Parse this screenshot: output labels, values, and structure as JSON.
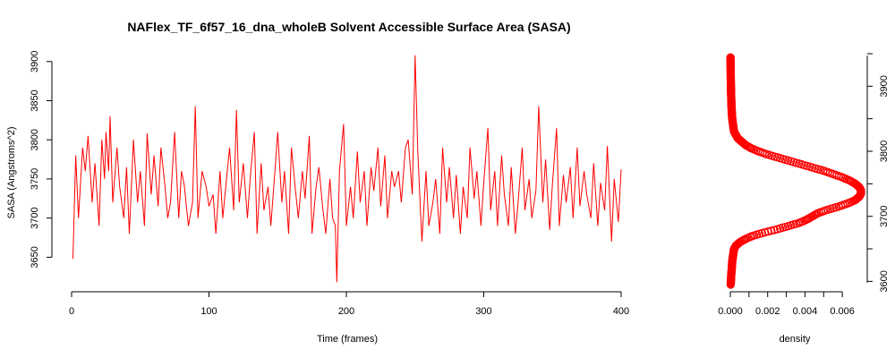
{
  "chart_data": [
    {
      "type": "line",
      "title": "NAFlex_TF_6f57_16_dna_wholeB Solvent Accessible Surface Area (SASA)",
      "xlabel": "Time (frames)",
      "ylabel": "SASA (Angstroms^2)",
      "xlim": [
        0,
        400
      ],
      "ylim": [
        3615,
        3910
      ],
      "xticks": [
        "0",
        "100",
        "200",
        "300",
        "400"
      ],
      "yticks": [
        "3650",
        "3700",
        "3750",
        "3800",
        "3850",
        "3900"
      ],
      "color": "#ff0000",
      "grid": false,
      "series": [
        {
          "x": [
            1,
            3,
            5,
            8,
            10,
            12,
            15,
            17,
            20,
            22,
            24,
            25,
            27,
            28,
            30,
            33,
            35,
            38,
            40,
            42,
            45,
            48,
            50,
            53,
            55,
            58,
            60,
            63,
            65,
            68,
            70,
            72,
            75,
            78,
            80,
            82,
            85,
            88,
            90,
            92,
            95,
            98,
            100,
            103,
            105,
            108,
            110,
            113,
            115,
            118,
            120,
            122,
            125,
            128,
            130,
            133,
            135,
            138,
            140,
            143,
            145,
            148,
            150,
            153,
            155,
            158,
            160,
            163,
            165,
            168,
            170,
            173,
            175,
            178,
            180,
            183,
            185,
            188,
            190,
            192,
            193,
            195,
            198,
            200,
            203,
            205,
            208,
            210,
            213,
            215,
            218,
            220,
            223,
            225,
            228,
            230,
            233,
            235,
            238,
            240,
            243,
            245,
            248,
            250,
            252,
            253,
            255,
            258,
            260,
            263,
            265,
            268,
            270,
            273,
            275,
            278,
            280,
            283,
            285,
            288,
            290,
            293,
            295,
            298,
            300,
            303,
            305,
            308,
            310,
            313,
            315,
            318,
            320,
            323,
            325,
            328,
            330,
            333,
            335,
            338,
            340,
            343,
            345,
            348,
            350,
            353,
            355,
            358,
            360,
            363,
            365,
            368,
            370,
            373,
            375,
            378,
            380,
            383,
            385,
            388,
            390,
            393,
            395,
            398,
            400
          ],
          "values": [
            3648,
            3780,
            3700,
            3790,
            3760,
            3805,
            3720,
            3770,
            3690,
            3800,
            3750,
            3810,
            3760,
            3830,
            3720,
            3790,
            3740,
            3700,
            3765,
            3680,
            3800,
            3720,
            3760,
            3690,
            3808,
            3730,
            3780,
            3715,
            3790,
            3740,
            3700,
            3720,
            3810,
            3700,
            3760,
            3742,
            3690,
            3720,
            3843,
            3700,
            3760,
            3740,
            3715,
            3730,
            3680,
            3760,
            3700,
            3755,
            3790,
            3710,
            3838,
            3720,
            3770,
            3700,
            3752,
            3810,
            3680,
            3770,
            3710,
            3740,
            3690,
            3760,
            3810,
            3720,
            3760,
            3680,
            3790,
            3735,
            3700,
            3760,
            3725,
            3805,
            3680,
            3740,
            3765,
            3710,
            3680,
            3750,
            3700,
            3690,
            3618,
            3760,
            3820,
            3690,
            3740,
            3700,
            3785,
            3720,
            3760,
            3690,
            3765,
            3735,
            3790,
            3715,
            3780,
            3700,
            3760,
            3740,
            3760,
            3720,
            3790,
            3800,
            3730,
            3908,
            3785,
            3745,
            3670,
            3760,
            3690,
            3720,
            3750,
            3680,
            3790,
            3720,
            3765,
            3700,
            3755,
            3680,
            3740,
            3700,
            3790,
            3725,
            3760,
            3690,
            3745,
            3815,
            3710,
            3760,
            3690,
            3780,
            3730,
            3690,
            3765,
            3680,
            3720,
            3790,
            3710,
            3750,
            3700,
            3735,
            3843,
            3720,
            3775,
            3685,
            3745,
            3815,
            3690,
            3755,
            3720,
            3765,
            3700,
            3790,
            3715,
            3760,
            3730,
            3700,
            3770,
            3690,
            3745,
            3710,
            3792,
            3670,
            3750,
            3695,
            3762
          ]
        }
      ]
    },
    {
      "type": "line",
      "title": "",
      "xlabel": "density",
      "ylabel": "",
      "xlim": [
        0,
        0.007
      ],
      "ylim": [
        3595,
        3950
      ],
      "xticks": [
        "0.000",
        "0.002",
        "0.004",
        "0.006"
      ],
      "yticks": [
        "3600",
        "3700",
        "3800",
        "3900"
      ],
      "color": "#ff0000",
      "grid": false,
      "series": [
        {
          "y": [
            3595,
            3610,
            3620,
            3630,
            3640,
            3650,
            3655,
            3660,
            3665,
            3670,
            3675,
            3680,
            3685,
            3690,
            3695,
            3700,
            3705,
            3710,
            3715,
            3720,
            3725,
            3730,
            3735,
            3740,
            3745,
            3750,
            3755,
            3760,
            3765,
            3770,
            3775,
            3780,
            3785,
            3790,
            3795,
            3800,
            3805,
            3810,
            3815,
            3820,
            3825,
            3830,
            3840,
            3850,
            3860,
            3870,
            3880,
            3900,
            3920,
            3940
          ],
          "values": [
            2e-05,
            5e-05,
            8e-05,
            0.0001,
            0.00015,
            0.0002,
            0.0003,
            0.0005,
            0.0008,
            0.0012,
            0.0018,
            0.0025,
            0.0031,
            0.0037,
            0.0041,
            0.0044,
            0.0047,
            0.0052,
            0.0058,
            0.0063,
            0.0067,
            0.0069,
            0.007,
            0.007,
            0.0069,
            0.0067,
            0.0064,
            0.006,
            0.0055,
            0.005,
            0.0044,
            0.0038,
            0.0032,
            0.0026,
            0.002,
            0.0015,
            0.0011,
            0.0008,
            0.0006,
            0.0004,
            0.0003,
            0.0002,
            0.00015,
            0.0001,
            8e-05,
            6e-05,
            5e-05,
            3e-05,
            2e-05,
            1e-05
          ]
        }
      ]
    }
  ]
}
